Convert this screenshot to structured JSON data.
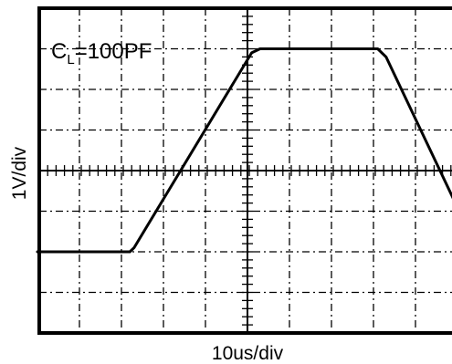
{
  "chart_data": {
    "type": "line",
    "title": "",
    "annotation": {
      "text": "C",
      "subscript": "L",
      "suffix": "=100PF"
    },
    "xlabel": "10us/div",
    "ylabel": "1V/div",
    "xlim": [
      0,
      10
    ],
    "ylim": [
      0,
      8
    ],
    "x_unit": "div",
    "y_unit": "div",
    "grid": true,
    "grid_style": "dash-dot",
    "series": [
      {
        "values_x": [
          0,
          2.2,
          2.3,
          5.1,
          5.3,
          8.1,
          8.3,
          10.5
        ],
        "values_y": [
          2.0,
          2.0,
          2.1,
          6.9,
          7.0,
          7.0,
          6.8,
          2.0
        ]
      }
    ]
  }
}
